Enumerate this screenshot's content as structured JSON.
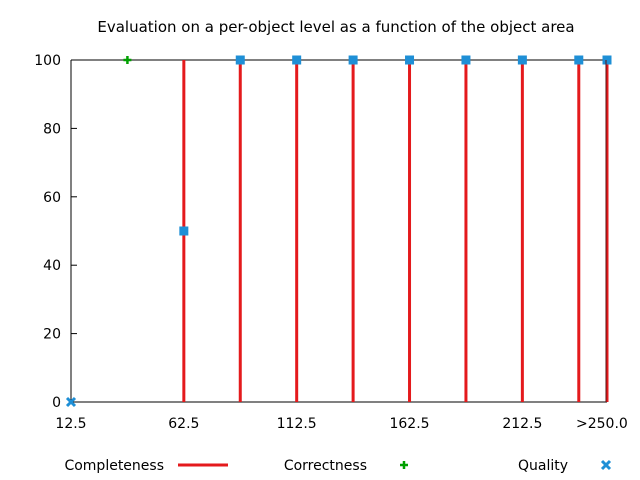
{
  "chart_data": {
    "type": "line",
    "title": "Evaluation on a per-object level as a function of the object area",
    "xlabel": "",
    "ylabel": "",
    "xlim": [
      12.5,
      250.0
    ],
    "ylim": [
      0,
      100
    ],
    "x_ticks": [
      {
        "value": 12.5,
        "label": "12.5"
      },
      {
        "value": 62.5,
        "label": "62.5"
      },
      {
        "value": 112.5,
        "label": "112.5"
      },
      {
        "value": 162.5,
        "label": "162.5"
      },
      {
        "value": 212.5,
        "label": "212.5"
      },
      {
        "value": 250.0,
        "label": ">250.0"
      }
    ],
    "y_ticks": [
      {
        "value": 0,
        "label": "0"
      },
      {
        "value": 20,
        "label": "20"
      },
      {
        "value": 40,
        "label": "40"
      },
      {
        "value": 60,
        "label": "60"
      },
      {
        "value": 80,
        "label": "80"
      },
      {
        "value": 100,
        "label": "100"
      }
    ],
    "grid": false,
    "legend_position": "bottom",
    "series": [
      {
        "name": "Completeness",
        "style": "impulses",
        "color": "#e41a1c",
        "points": [
          {
            "x": 12.5,
            "y": 0
          },
          {
            "x": 62.5,
            "y": 100
          },
          {
            "x": 87.5,
            "y": 100
          },
          {
            "x": 112.5,
            "y": 100
          },
          {
            "x": 137.5,
            "y": 100
          },
          {
            "x": 162.5,
            "y": 100
          },
          {
            "x": 187.5,
            "y": 100
          },
          {
            "x": 212.5,
            "y": 100
          },
          {
            "x": 237.5,
            "y": 100
          },
          {
            "x": 250.0,
            "y": 100
          }
        ]
      },
      {
        "name": "Correctness",
        "style": "plus",
        "color": "#00a000",
        "points": [
          {
            "x": 37.5,
            "y": 100
          }
        ]
      },
      {
        "name": "Quality",
        "style": "square",
        "color": "#1e8fd6",
        "points": [
          {
            "x": 12.5,
            "y": 0
          },
          {
            "x": 62.5,
            "y": 50
          },
          {
            "x": 87.5,
            "y": 100
          },
          {
            "x": 112.5,
            "y": 100
          },
          {
            "x": 137.5,
            "y": 100
          },
          {
            "x": 162.5,
            "y": 100
          },
          {
            "x": 187.5,
            "y": 100
          },
          {
            "x": 212.5,
            "y": 100
          },
          {
            "x": 237.5,
            "y": 100
          },
          {
            "x": 250.0,
            "y": 100
          }
        ]
      }
    ]
  }
}
